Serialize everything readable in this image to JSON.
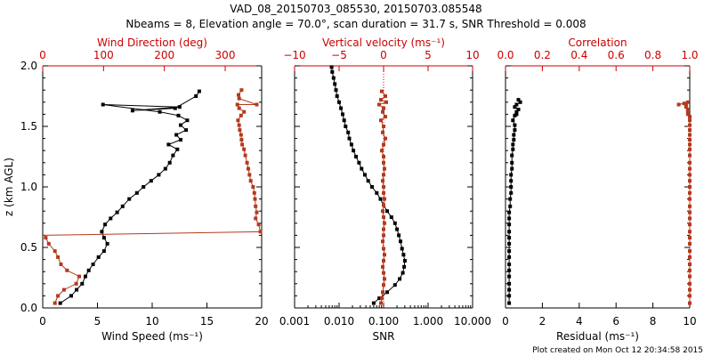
{
  "title_line1": "VAD_08_20150703_085530, 20150703.085548",
  "title_line2": "Nbeams = 8, Elevation angle = 70.0°, scan duration = 31.7 s, SNR Threshold = 0.008",
  "footer": "Plot created on Mon Oct 12 20:34:58 2015",
  "colors": {
    "black": "#000000",
    "red": "#b33a1e",
    "axis_red": "#cc0000"
  },
  "chart_data": [
    {
      "type": "line",
      "panel": "left",
      "ylabel": "z (km AGL)",
      "ylim": [
        0.0,
        2.0
      ],
      "yticks": [
        "0.0",
        "0.5",
        "1.0",
        "1.5",
        "2.0"
      ],
      "bottom_axis": {
        "label": "Wind Speed (ms⁻¹)",
        "range": [
          0,
          20
        ],
        "ticks": [
          "0",
          "5",
          "10",
          "15",
          "20"
        ]
      },
      "top_axis": {
        "label": "Wind Direction (deg)",
        "range": [
          0,
          360
        ],
        "ticks": [
          "0",
          "100",
          "200",
          "300"
        ]
      },
      "series": [
        {
          "name": "Wind Speed",
          "color": "#000000",
          "axis": "bottom",
          "x": [
            1.6,
            2.6,
            3.1,
            3.6,
            3.9,
            4.2,
            4.6,
            5.1,
            5.6,
            5.9,
            5.6,
            5.4,
            5.7,
            6.2,
            6.8,
            7.3,
            7.9,
            8.6,
            9.2,
            9.9,
            10.6,
            11.2,
            11.6,
            11.9,
            12.3,
            11.5,
            12.6,
            12.2,
            13.1,
            12.6,
            13.2,
            12.4,
            10.7,
            5.5,
            12.5,
            8.2,
            12.1,
            14.0,
            14.3
          ],
          "y": [
            0.04,
            0.1,
            0.15,
            0.2,
            0.26,
            0.31,
            0.36,
            0.42,
            0.47,
            0.53,
            0.58,
            0.63,
            0.69,
            0.74,
            0.79,
            0.84,
            0.9,
            0.95,
            1.0,
            1.05,
            1.1,
            1.15,
            1.2,
            1.26,
            1.31,
            1.35,
            1.39,
            1.43,
            1.47,
            1.51,
            1.55,
            1.59,
            1.62,
            1.68,
            1.66,
            1.63,
            1.65,
            1.75,
            1.79
          ]
        },
        {
          "name": "Wind Direction",
          "color": "#b33a1e",
          "axis": "top",
          "x": [
            20,
            25,
            35,
            55,
            60,
            40,
            30,
            25,
            20,
            10,
            5,
            358,
            355,
            350,
            352,
            350,
            349,
            348,
            346,
            342,
            340,
            338,
            336,
            333,
            331,
            328,
            327,
            326,
            324,
            323,
            321,
            326,
            331,
            323,
            320,
            352,
            323,
            322,
            327
          ],
          "y": [
            0.04,
            0.1,
            0.15,
            0.2,
            0.26,
            0.31,
            0.36,
            0.42,
            0.47,
            0.53,
            0.58,
            0.63,
            0.69,
            0.74,
            0.79,
            0.84,
            0.9,
            0.95,
            1.0,
            1.05,
            1.1,
            1.15,
            1.2,
            1.26,
            1.31,
            1.35,
            1.39,
            1.43,
            1.47,
            1.51,
            1.55,
            1.59,
            1.62,
            1.65,
            1.68,
            1.68,
            1.73,
            1.76,
            1.8
          ]
        }
      ]
    },
    {
      "type": "line",
      "panel": "middle",
      "bottom_axis": {
        "label": "SNR",
        "scale": "log",
        "range": [
          0.001,
          10.0
        ],
        "ticks": [
          "0.001",
          "0.010",
          "0.100",
          "1.000",
          "10.000"
        ]
      },
      "top_axis": {
        "label": "Vertical velocity (ms⁻¹)",
        "range": [
          -10,
          10
        ],
        "ticks": [
          "−10",
          "−5",
          "0",
          "5",
          "10"
        ]
      },
      "series": [
        {
          "name": "SNR",
          "color": "#000000",
          "axis": "bottom",
          "x": [
            0.06,
            0.08,
            0.12,
            0.18,
            0.23,
            0.27,
            0.29,
            0.3,
            0.28,
            0.26,
            0.24,
            0.22,
            0.2,
            0.18,
            0.15,
            0.12,
            0.1,
            0.085,
            0.07,
            0.055,
            0.045,
            0.038,
            0.032,
            0.028,
            0.024,
            0.021,
            0.019,
            0.017,
            0.016,
            0.014,
            0.013,
            0.012,
            0.011,
            0.01,
            0.009,
            0.0085,
            0.008,
            0.0075,
            0.007,
            0.0068
          ],
          "y": [
            0.04,
            0.08,
            0.13,
            0.19,
            0.24,
            0.29,
            0.34,
            0.39,
            0.44,
            0.49,
            0.55,
            0.6,
            0.65,
            0.7,
            0.75,
            0.8,
            0.85,
            0.9,
            0.95,
            1.0,
            1.05,
            1.1,
            1.15,
            1.2,
            1.25,
            1.3,
            1.35,
            1.4,
            1.45,
            1.5,
            1.55,
            1.6,
            1.65,
            1.7,
            1.75,
            1.8,
            1.85,
            1.9,
            1.95,
            1.99
          ]
        },
        {
          "name": "Vertical velocity",
          "color": "#b33a1e",
          "axis": "top",
          "x": [
            -0.3,
            -0.2,
            -0.1,
            0.0,
            0.1,
            0.0,
            -0.1,
            0.0,
            0.1,
            0.0,
            -0.1,
            0.0,
            0.0,
            0.1,
            0.0,
            -0.1,
            0.0,
            0.1,
            0.0,
            0.0,
            -0.1,
            0.0,
            0.1,
            0.0,
            0.0,
            -0.2,
            0.0,
            0.2,
            -0.1,
            0.0,
            -0.3,
            0.2,
            -0.1,
            0.0,
            -0.5,
            0.3,
            -0.3,
            0.2,
            -0.2
          ],
          "y": [
            0.04,
            0.08,
            0.13,
            0.19,
            0.24,
            0.29,
            0.34,
            0.39,
            0.44,
            0.49,
            0.55,
            0.6,
            0.65,
            0.7,
            0.75,
            0.8,
            0.85,
            0.9,
            0.95,
            1.0,
            1.05,
            1.1,
            1.15,
            1.2,
            1.25,
            1.3,
            1.35,
            1.4,
            1.45,
            1.5,
            1.55,
            1.58,
            1.62,
            1.65,
            1.68,
            1.7,
            1.72,
            1.75,
            1.79
          ]
        }
      ]
    },
    {
      "type": "line",
      "panel": "right",
      "bottom_axis": {
        "label": "Residual (ms⁻¹)",
        "range": [
          0,
          10
        ],
        "ticks": [
          "0",
          "2",
          "4",
          "6",
          "8",
          "10"
        ]
      },
      "top_axis": {
        "label": "Correlation",
        "range": [
          0.0,
          1.0
        ],
        "ticks": [
          "0.0",
          "0.2",
          "0.4",
          "0.6",
          "0.8",
          "1.0"
        ]
      },
      "series": [
        {
          "name": "Residual",
          "color": "#000000",
          "axis": "bottom",
          "x": [
            0.2,
            0.2,
            0.2,
            0.2,
            0.2,
            0.2,
            0.2,
            0.2,
            0.2,
            0.2,
            0.2,
            0.2,
            0.2,
            0.2,
            0.2,
            0.25,
            0.25,
            0.3,
            0.3,
            0.3,
            0.3,
            0.35,
            0.35,
            0.35,
            0.4,
            0.4,
            0.45,
            0.45,
            0.5,
            0.5,
            0.4,
            0.5,
            0.6,
            0.6,
            0.7,
            0.5,
            0.6,
            0.8,
            0.7
          ],
          "y": [
            0.04,
            0.1,
            0.15,
            0.2,
            0.26,
            0.31,
            0.36,
            0.42,
            0.47,
            0.53,
            0.58,
            0.63,
            0.69,
            0.74,
            0.79,
            0.84,
            0.9,
            0.95,
            1.0,
            1.05,
            1.1,
            1.15,
            1.2,
            1.26,
            1.31,
            1.35,
            1.39,
            1.43,
            1.47,
            1.51,
            1.55,
            1.59,
            1.62,
            1.6,
            1.64,
            1.66,
            1.68,
            1.7,
            1.72
          ]
        },
        {
          "name": "Correlation",
          "color": "#b33a1e",
          "axis": "top",
          "x": [
            1.0,
            1.0,
            1.0,
            1.0,
            1.0,
            1.0,
            1.0,
            1.0,
            1.0,
            1.0,
            1.0,
            1.0,
            1.0,
            1.0,
            1.0,
            1.0,
            1.0,
            1.0,
            1.0,
            1.0,
            1.0,
            1.0,
            1.0,
            1.0,
            1.0,
            1.0,
            1.0,
            1.0,
            1.0,
            1.0,
            1.0,
            1.0,
            0.99,
            0.99,
            0.99,
            0.99,
            0.98,
            0.98,
            0.97,
            0.94,
            0.99
          ],
          "y": [
            0.04,
            0.1,
            0.15,
            0.2,
            0.26,
            0.31,
            0.36,
            0.42,
            0.47,
            0.53,
            0.58,
            0.63,
            0.69,
            0.74,
            0.79,
            0.84,
            0.9,
            0.95,
            1.0,
            1.05,
            1.1,
            1.15,
            1.2,
            1.26,
            1.31,
            1.35,
            1.39,
            1.43,
            1.47,
            1.51,
            1.55,
            1.58,
            1.6,
            1.62,
            1.63,
            1.64,
            1.66,
            1.68,
            1.69,
            1.68,
            1.7
          ]
        }
      ]
    }
  ]
}
